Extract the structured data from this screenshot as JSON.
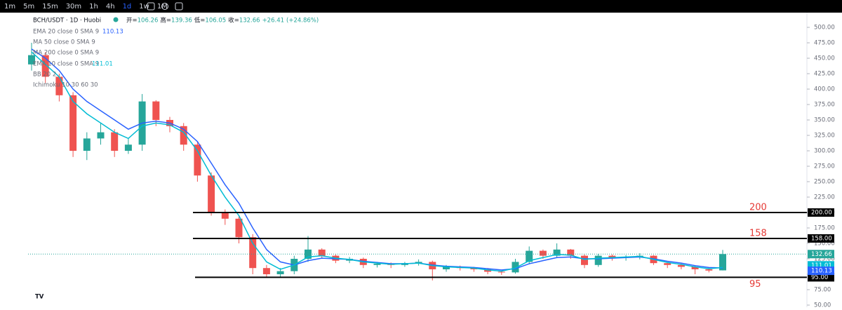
{
  "toolbar": {
    "intervals": [
      "1m",
      "5m",
      "15m",
      "30m",
      "1h",
      "4h",
      "1d",
      "1w",
      "1M"
    ],
    "active": 6
  },
  "chart_data": {
    "type": "candlestick",
    "symbol": "BCH/USDT · 1D · Huobi",
    "ohlc_labels": [
      "开",
      "高",
      "低",
      "收"
    ],
    "change": "+26.41",
    "change_pct": "(+24.86%)",
    "categories": [
      null,
      null,
      null,
      null,
      null,
      null,
      null,
      null,
      null,
      null,
      null,
      null,
      null,
      null,
      null,
      null,
      null,
      null,
      null,
      null,
      null,
      null,
      null,
      null,
      null,
      null,
      null,
      null,
      null,
      null,
      null,
      null,
      null,
      null,
      null,
      null,
      null,
      null,
      null,
      null,
      null,
      null,
      null,
      null,
      null,
      null,
      null,
      null,
      null,
      null,
      null
    ],
    "open": [
      440,
      455,
      420,
      390,
      300,
      320,
      330,
      300,
      310,
      380,
      350,
      340,
      310,
      260,
      200,
      190,
      160,
      110,
      100,
      105,
      125,
      140,
      130,
      122,
      125,
      115,
      117,
      115,
      118,
      120,
      108,
      112,
      110,
      108,
      104,
      103,
      120,
      138,
      130,
      140,
      130,
      115,
      130,
      127,
      128,
      130,
      118,
      115,
      112,
      108,
      106.26
    ],
    "high": [
      475,
      460,
      425,
      395,
      330,
      345,
      335,
      320,
      392,
      382,
      355,
      345,
      315,
      265,
      205,
      195,
      165,
      115,
      110,
      130,
      162,
      142,
      132,
      128,
      127,
      120,
      119,
      120,
      124,
      122,
      115,
      114,
      112,
      110,
      106,
      125,
      145,
      140,
      150,
      141,
      132,
      133,
      132,
      131,
      134,
      131,
      120,
      117,
      114,
      110,
      139.36
    ],
    "low": [
      430,
      410,
      380,
      290,
      285,
      310,
      290,
      295,
      300,
      340,
      330,
      300,
      250,
      195,
      180,
      150,
      100,
      95,
      96,
      100,
      120,
      125,
      118,
      118,
      110,
      111,
      110,
      112,
      114,
      90,
      104,
      106,
      104,
      100,
      99,
      101,
      116,
      125,
      126,
      125,
      110,
      112,
      122,
      122,
      124,
      115,
      110,
      108,
      100,
      103,
      106.05
    ],
    "close": [
      455,
      420,
      390,
      300,
      320,
      330,
      300,
      310,
      380,
      350,
      340,
      310,
      260,
      200,
      190,
      160,
      110,
      100,
      105,
      125,
      140,
      130,
      122,
      125,
      115,
      117,
      115,
      118,
      120,
      108,
      112,
      110,
      108,
      104,
      103,
      120,
      138,
      130,
      140,
      130,
      115,
      130,
      127,
      128,
      130,
      118,
      115,
      112,
      108,
      106,
      132.66
    ],
    "up_color": "#26a69a",
    "down_color": "#ef5350",
    "series": [
      {
        "name": "EMA 20 close 0 SMA 9",
        "color": "#2962ff",
        "values": [
          465,
          450,
          430,
          400,
          380,
          365,
          350,
          335,
          345,
          348,
          345,
          335,
          315,
          280,
          245,
          215,
          175,
          140,
          120,
          115,
          122,
          126,
          125,
          124,
          121,
          119,
          117,
          117,
          118,
          115,
          113,
          112,
          111,
          109,
          107,
          109,
          117,
          122,
          127,
          128,
          125,
          125,
          126,
          127,
          128,
          125,
          121,
          118,
          114,
          111,
          110.13
        ]
      },
      {
        "name": "EMA 10 close 0 SMA 9",
        "color": "#00bcd4",
        "values": [
          460,
          440,
          420,
          380,
          360,
          345,
          330,
          320,
          340,
          345,
          342,
          330,
          300,
          260,
          225,
          195,
          150,
          120,
          108,
          115,
          128,
          130,
          126,
          124,
          120,
          118,
          116,
          117,
          118,
          114,
          112,
          111,
          110,
          107,
          105,
          110,
          122,
          127,
          132,
          131,
          124,
          126,
          127,
          128,
          129,
          124,
          119,
          116,
          112,
          109,
          111.01
        ]
      }
    ],
    "indicators": [
      "MA 50 close 0 SMA 9",
      "MA 200 close 0 SMA 9",
      "BB 20 2",
      "Ichimoku 10 30 60 30"
    ],
    "hlines": [
      {
        "value": 200,
        "label": "200.00"
      },
      {
        "value": 158,
        "label": "158.00"
      },
      {
        "value": 95,
        "label": "95.00"
      }
    ],
    "ylim": [
      46.6,
      523.9
    ],
    "yticks": [
      {
        "value": 50,
        "label": "50.00"
      },
      {
        "value": 75,
        "label": "75.00"
      },
      {
        "value": 100,
        "label": "100.00"
      },
      {
        "value": 125,
        "label": "125.00"
      },
      {
        "value": 150,
        "label": "150.00"
      },
      {
        "value": 175,
        "label": "175.00"
      },
      {
        "value": 200,
        "label": "200.00"
      },
      {
        "value": 225,
        "label": "225.00"
      },
      {
        "value": 250,
        "label": "250.00"
      },
      {
        "value": 275,
        "label": "275.00"
      },
      {
        "value": 300,
        "label": "300.00"
      },
      {
        "value": 325,
        "label": "325.00"
      },
      {
        "value": 350,
        "label": "350.00"
      },
      {
        "value": 375,
        "label": "375.00"
      },
      {
        "value": 400,
        "label": "400.00"
      },
      {
        "value": 425,
        "label": "425.00"
      },
      {
        "value": 450,
        "label": "450.00"
      },
      {
        "value": 475,
        "label": "475.00"
      },
      {
        "value": 500,
        "label": "500.00"
      }
    ]
  }
}
